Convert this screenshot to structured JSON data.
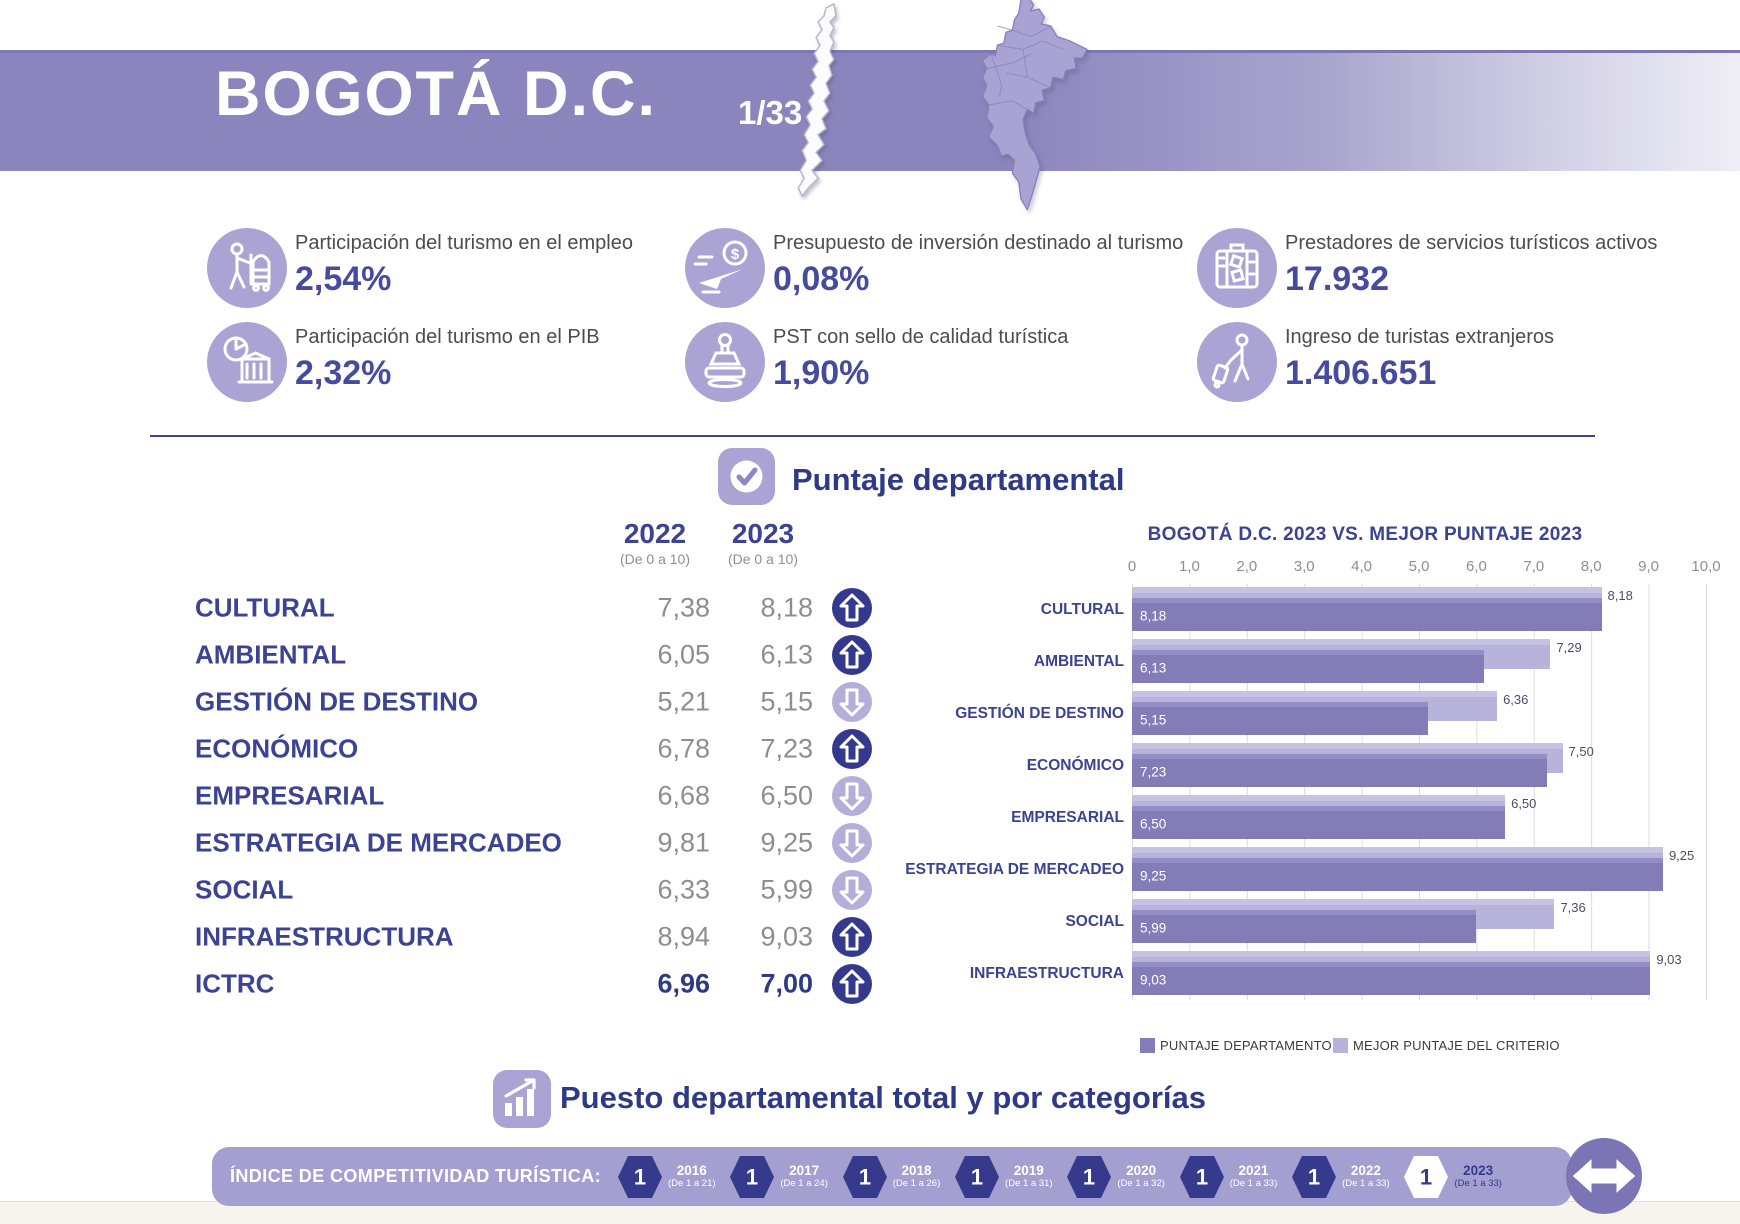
{
  "banner": {
    "title": "BOGOTÁ D.C.",
    "page_indicator": "1/33"
  },
  "stats": [
    {
      "icon": "bellhop-luggage-icon",
      "label": "Participación del turismo en el empleo",
      "value": "2,54%"
    },
    {
      "icon": "pie-chart-building-icon",
      "label": "Participación del turismo en el PIB",
      "value": "2,32%"
    },
    {
      "icon": "airplane-budget-icon",
      "label": "Presupuesto de inversión destinado al turismo",
      "value": "0,08%"
    },
    {
      "icon": "quality-stamp-icon",
      "label": "PST con sello de calidad turística",
      "value": "1,90%"
    },
    {
      "icon": "service-providers-icon",
      "label": "Prestadores de servicios turísticos activos",
      "value": "17.932"
    },
    {
      "icon": "foreign-tourist-icon",
      "label": "Ingreso de turistas extranjeros",
      "value": "1.406.651"
    }
  ],
  "score_section": {
    "heading": "Puntaje departamental",
    "columns": {
      "y2022": "2022",
      "y2023": "2023",
      "scale_note": "(De 0 a 10)"
    },
    "rows": [
      {
        "label": "CULTURAL",
        "v2022": "7,38",
        "v2023": "8,18",
        "trend": "up",
        "emphasis": false
      },
      {
        "label": "AMBIENTAL",
        "v2022": "6,05",
        "v2023": "6,13",
        "trend": "up",
        "emphasis": false
      },
      {
        "label": "GESTIÓN DE DESTINO",
        "v2022": "5,21",
        "v2023": "5,15",
        "trend": "down",
        "emphasis": false
      },
      {
        "label": "ECONÓMICO",
        "v2022": "6,78",
        "v2023": "7,23",
        "trend": "up",
        "emphasis": false
      },
      {
        "label": "EMPRESARIAL",
        "v2022": "6,68",
        "v2023": "6,50",
        "trend": "down",
        "emphasis": false
      },
      {
        "label": "ESTRATEGIA DE MERCADEO",
        "v2022": "9,81",
        "v2023": "9,25",
        "trend": "down",
        "emphasis": false
      },
      {
        "label": "SOCIAL",
        "v2022": "6,33",
        "v2023": "5,99",
        "trend": "down",
        "emphasis": false
      },
      {
        "label": "INFRAESTRUCTURA",
        "v2022": "8,94",
        "v2023": "9,03",
        "trend": "up",
        "emphasis": false
      },
      {
        "label": "ICTRC",
        "v2022": "6,96",
        "v2023": "7,00",
        "trend": "up",
        "emphasis": true
      }
    ]
  },
  "chart_data": {
    "type": "bar",
    "orientation": "horizontal",
    "title": "BOGOTÁ D.C. 2023 VS. MEJOR PUNTAJE 2023",
    "categories": [
      "CULTURAL",
      "AMBIENTAL",
      "GESTIÓN DE DESTINO",
      "ECONÓMICO",
      "EMPRESARIAL",
      "ESTRATEGIA DE MERCADEO",
      "SOCIAL",
      "INFRAESTRUCTURA"
    ],
    "series": [
      {
        "name": "PUNTAJE DEPARTAMENTO",
        "color": "#827cb7",
        "values": [
          8.18,
          6.13,
          5.15,
          7.23,
          6.5,
          9.25,
          5.99,
          9.03
        ],
        "labels": [
          "8,18",
          "6,13",
          "5,15",
          "7,23",
          "6,50",
          "9,25",
          "5,99",
          "9,03"
        ]
      },
      {
        "name": "MEJOR PUNTAJE DEL CRITERIO",
        "color": "#b7b3da",
        "values": [
          8.18,
          7.29,
          6.36,
          7.5,
          6.5,
          9.25,
          7.36,
          9.03
        ],
        "labels": [
          "8,18",
          "7,29",
          "6,36",
          "7,50",
          "6,50",
          "9,25",
          "7,36",
          "9,03"
        ]
      }
    ],
    "xlim": [
      0,
      10
    ],
    "ticks": [
      "0",
      "1,0",
      "2,0",
      "3,0",
      "4,0",
      "5,0",
      "6,0",
      "7,0",
      "8,0",
      "9,0",
      "10,0"
    ],
    "grid": true,
    "legend_position": "bottom"
  },
  "ranking_section": {
    "heading": "Puesto departamental total y por categorías",
    "band_label": "ÍNDICE DE COMPETITIVIDAD TURÍSTICA:",
    "years": [
      {
        "year": "2016",
        "range": "(De 1 a 21)",
        "rank": "1",
        "highlight": false
      },
      {
        "year": "2017",
        "range": "(De 1 a 24)",
        "rank": "1",
        "highlight": false
      },
      {
        "year": "2018",
        "range": "(De 1 a 26)",
        "rank": "1",
        "highlight": false
      },
      {
        "year": "2019",
        "range": "(De 1 a 31)",
        "rank": "1",
        "highlight": false
      },
      {
        "year": "2020",
        "range": "(De 1 a 32)",
        "rank": "1",
        "highlight": false
      },
      {
        "year": "2021",
        "range": "(De 1 a 33)",
        "rank": "1",
        "highlight": false
      },
      {
        "year": "2022",
        "range": "(De 1 a 33)",
        "rank": "1",
        "highlight": false
      },
      {
        "year": "2023",
        "range": "(De 1 a 33)",
        "rank": "1",
        "highlight": true
      }
    ]
  },
  "colors": {
    "banner": "#8b85bd",
    "accent_navy": "#3c4392",
    "icon_circle": "#a9a4d4",
    "bar_dept": "#827cb7",
    "bar_best": "#b7b3da",
    "band": "#a49fd1",
    "hexagon": "#353a8c",
    "up_arrow": "#35398d",
    "down_arrow": "#b3afd9",
    "cream": "#f6f4ec"
  }
}
